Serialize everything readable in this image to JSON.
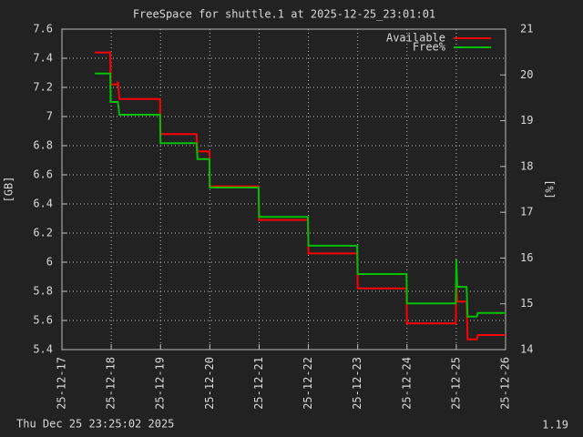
{
  "chart_data": {
    "type": "line",
    "title": "FreeSpace for shuttle.1  at 2025-12-25_23:01:01",
    "footer_left": "Thu Dec 25 23:25:02 2025",
    "footer_right": "1.19",
    "y_label": "[GB]",
    "y2_label": "[%]",
    "x": [
      "25-12-17 16:00",
      "25-12-17 23:30",
      "25-12-17 23:45",
      "25-12-18 03:00",
      "25-12-18 03:15",
      "25-12-18 04:00",
      "25-12-18 23:45",
      "25-12-19 00:00",
      "25-12-19 17:30",
      "25-12-19 18:00",
      "25-12-19 23:45",
      "25-12-20 00:00",
      "25-12-20 23:45",
      "25-12-21 00:00",
      "25-12-21 23:45",
      "25-12-22 00:00",
      "25-12-22 23:45",
      "25-12-23 00:00",
      "25-12-23 23:45",
      "25-12-24 00:00",
      "25-12-24 23:45",
      "25-12-25 00:00",
      "25-12-25 00:30",
      "25-12-25 05:00",
      "25-12-25 05:30",
      "25-12-25 10:00",
      "25-12-25 10:30",
      "25-12-25 23:59"
    ],
    "series": [
      {
        "name": "Available",
        "color": "#ff0000",
        "values": [
          7.44,
          7.44,
          7.22,
          7.22,
          7.24,
          7.12,
          7.12,
          6.88,
          6.88,
          6.76,
          6.76,
          6.52,
          6.52,
          6.29,
          6.29,
          6.06,
          6.06,
          5.82,
          5.82,
          5.58,
          5.58,
          5.85,
          5.73,
          5.73,
          5.47,
          5.47,
          5.5,
          5.5
        ]
      },
      {
        "name": "Free%",
        "color": "#00c000",
        "axis": "y2",
        "values": [
          20.03,
          20.03,
          19.41,
          19.41,
          19.41,
          19.13,
          19.13,
          18.51,
          18.51,
          18.16,
          18.16,
          17.54,
          17.54,
          16.9,
          16.9,
          16.27,
          16.27,
          15.65,
          15.65,
          15.01,
          15.01,
          15.97,
          15.37,
          15.37,
          14.72,
          14.72,
          14.8,
          14.8
        ]
      }
    ],
    "xlim": [
      "25-12-17",
      "25-12-26"
    ],
    "xticks": [
      "25-12-17",
      "25-12-18",
      "25-12-19",
      "25-12-20",
      "25-12-21",
      "25-12-22",
      "25-12-23",
      "25-12-24",
      "25-12-25",
      "25-12-26"
    ],
    "ylim": [
      5.4,
      7.6
    ],
    "yticks": [
      5.4,
      5.6,
      5.8,
      6,
      6.2,
      6.4,
      6.6,
      6.8,
      7,
      7.2,
      7.4,
      7.6
    ],
    "y2lim": [
      14,
      21
    ],
    "y2ticks": [
      14,
      15,
      16,
      17,
      18,
      19,
      20,
      21
    ],
    "grid": true,
    "legend": "top-right"
  }
}
